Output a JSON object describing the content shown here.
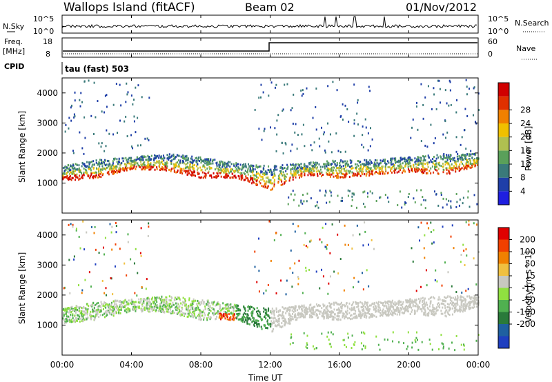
{
  "header": {
    "station": "Wallops Island (fitACF)",
    "beam": "Beam 02",
    "date": "01/Nov/2012"
  },
  "panels": {
    "nsky": {
      "left_label": "N.Sky",
      "right_label": "N.Search",
      "left_ticks": [
        "10^5",
        "10^0"
      ],
      "right_ticks": [
        "10^5",
        "10^0"
      ]
    },
    "freq": {
      "left_label_1": "Freq.",
      "left_label_2": "[MHz]",
      "right_label": "Nave",
      "left_ticks": [
        "18",
        "8"
      ],
      "right_ticks": [
        "60",
        "0"
      ]
    },
    "cpid": {
      "label": "CPID",
      "value": "tau (fast) 503"
    }
  },
  "chart_data": [
    {
      "type": "heatmap",
      "panel": "power",
      "ylabel": "Slant Range [km]",
      "ylim": [
        0,
        4500
      ],
      "yticks": [
        1000,
        2000,
        3000,
        4000
      ],
      "xlim": [
        0,
        24
      ],
      "colorbar_label": "Power [dB]",
      "colorbar_ticks": [
        "4",
        "8",
        "12",
        "16",
        "20",
        "24",
        "28"
      ],
      "colorbar_colors": [
        "#1f1fe0",
        "#1f3fa8",
        "#3a7a7a",
        "#5aa05a",
        "#b0c050",
        "#f0c000",
        "#f08000",
        "#e03000",
        "#d00000"
      ],
      "backscatter_band": {
        "x_hours": [
          0,
          2,
          4,
          6,
          8,
          10,
          12,
          14,
          16,
          18,
          20,
          22,
          24
        ],
        "lower_edge_km": [
          1100,
          1200,
          1500,
          1450,
          1200,
          1200,
          800,
          1300,
          1200,
          1300,
          1400,
          1300,
          1600
        ],
        "upper_edge_km": [
          1600,
          1800,
          1900,
          2000,
          1900,
          1700,
          1600,
          1700,
          1800,
          1800,
          1900,
          2000,
          2000
        ]
      }
    },
    {
      "type": "heatmap",
      "panel": "velocity",
      "ylabel": "Slant Range [km]",
      "xlabel": "Time UT",
      "ylim": [
        0,
        4500
      ],
      "yticks": [
        1000,
        2000,
        3000,
        4000
      ],
      "xlim": [
        0,
        24
      ],
      "xticks": [
        "00:00",
        "04:00",
        "08:00",
        "12:00",
        "16:00",
        "20:00",
        "00:00"
      ],
      "colorbar_label": "Velocity [m s^-1]",
      "colorbar_ticks": [
        "200",
        "100",
        "50",
        "15",
        "-15",
        "-50",
        "-100",
        "-200"
      ],
      "colorbar_colors": [
        "#1f3fc0",
        "#1f60a0",
        "#2a7a3a",
        "#50b050",
        "#90e040",
        "#c8c8c0",
        "#f0c040",
        "#f08000",
        "#f04000",
        "#e00000"
      ]
    }
  ]
}
